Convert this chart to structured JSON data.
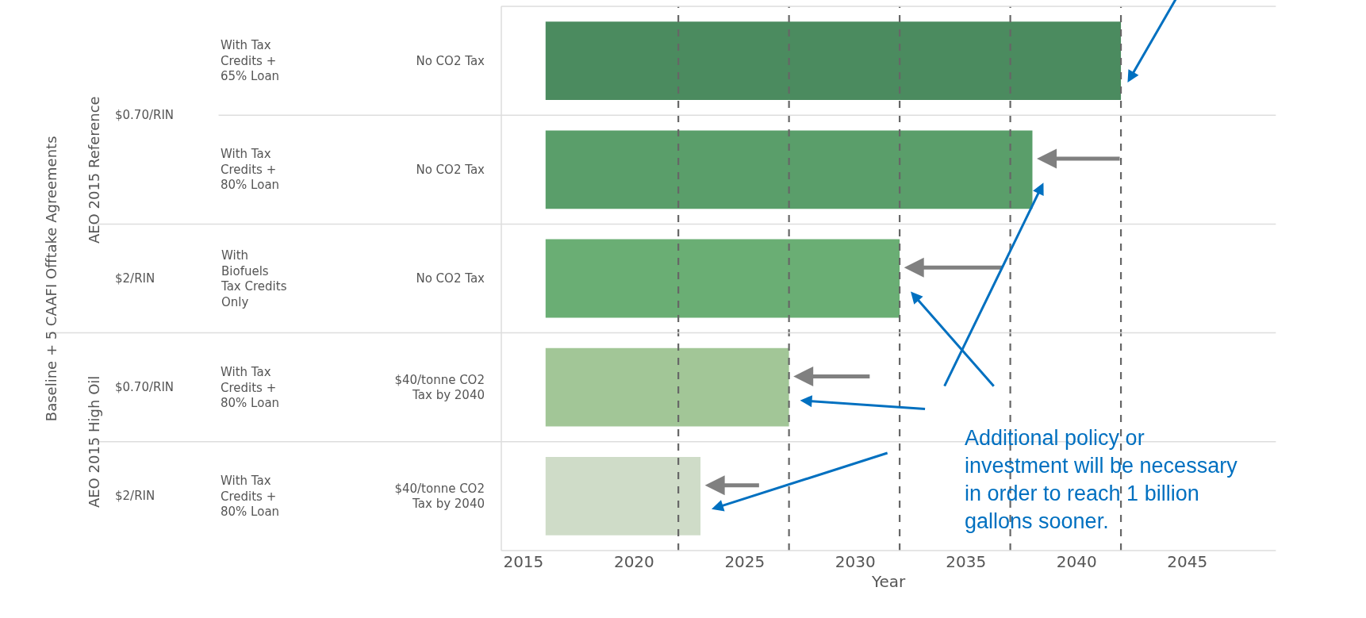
{
  "chart_data": {
    "type": "bar",
    "orientation": "horizontal",
    "xlabel": "Year",
    "categories": [
      "No CO2 Tax",
      "No CO2 Tax",
      "No CO2 Tax",
      "$40/tonne CO2 Tax by 2040",
      "$40/tonne CO2 Tax by 2040"
    ],
    "base": [
      2016,
      2016,
      2016,
      2016,
      2016
    ],
    "values": [
      26,
      22,
      16,
      11,
      7
    ],
    "colors": [
      "#4b8b5f",
      "#5a9e6a",
      "#6aae74",
      "#a2c697",
      "#cfdcc8"
    ],
    "xlim": [
      2014,
      2049
    ],
    "xticks": [
      2015,
      2020,
      2025,
      2030,
      2035,
      2040,
      2045
    ],
    "ref_lines": [
      {
        "axis": "x",
        "value": 2022,
        "color": "#666666",
        "line_style": "dashed"
      },
      {
        "axis": "x",
        "value": 2027,
        "color": "#666666",
        "line_style": "dashed"
      },
      {
        "axis": "x",
        "value": 2032,
        "color": "#666666",
        "line_style": "dashed"
      },
      {
        "axis": "x",
        "value": 2037,
        "color": "#666666",
        "line_style": "dashed"
      },
      {
        "axis": "x",
        "value": 2042,
        "color": "#666666",
        "line_style": "dashed"
      }
    ],
    "annotations": [
      "Baseline + 5 CAAFI Offtake Agreements",
      "AEO 2015 Reference",
      "AEO 2015 High Oil",
      "$0.70/RIN",
      "$2/RIN",
      "$0.70/RIN",
      "$2/RIN",
      "With Tax Credits + 65% Loan",
      "With Tax Credits + 80% Loan",
      "With Biofuels Tax Credits Only",
      "With Tax Credits + 80% Loan",
      "With Tax Credits + 80% Loan",
      "Additional policy or investment will be necessary in order to reach 1 billion gallons sooner."
    ]
  }
}
